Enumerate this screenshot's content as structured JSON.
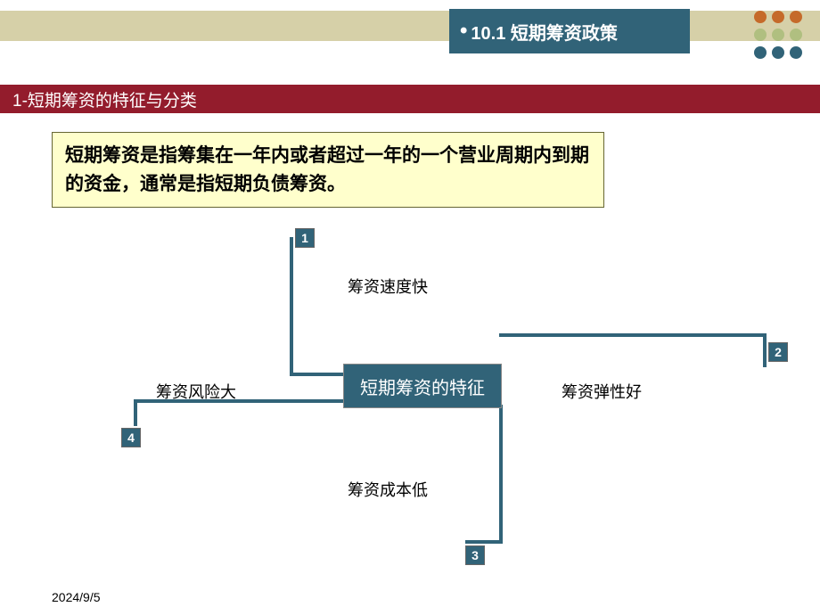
{
  "header": {
    "section_number": "10.1",
    "section_title": "短期筹资政策",
    "title_full": "10.1 短期筹资政策"
  },
  "dots": {
    "colors": [
      "#c56a2a",
      "#c56a2a",
      "#c56a2a",
      "#b0bf80",
      "#b0bf80",
      "#b0bf80",
      "#316378",
      "#316378",
      "#316378"
    ]
  },
  "subtitle_band": {
    "text": "1-短期筹资的特征与分类",
    "bg_color": "#931c2c",
    "text_color": "#ffffff"
  },
  "definition": {
    "text": "短期筹资是指筹集在一年内或者超过一年的一个营业周期内到期的资金，通常是指短期负债筹资。",
    "bg_color": "#ffffcc",
    "border_color": "#666633"
  },
  "diagram": {
    "type": "infographic",
    "center_label": "短期筹资的特征",
    "center_bg": "#316378",
    "center_text_color": "#ffffff",
    "line_color": "#316378",
    "features": [
      {
        "num": "1",
        "label": "筹资速度快"
      },
      {
        "num": "2",
        "label": "筹资弹性好"
      },
      {
        "num": "3",
        "label": "筹资成本低"
      },
      {
        "num": "4",
        "label": "筹资风险大"
      }
    ],
    "num_box_bg": "#316378",
    "num_box_text": "#ffffff"
  },
  "footer": {
    "date": "2024/9/5"
  },
  "colors": {
    "top_bar": "#d6d0a8",
    "title_box": "#316378",
    "background": "#ffffff"
  }
}
